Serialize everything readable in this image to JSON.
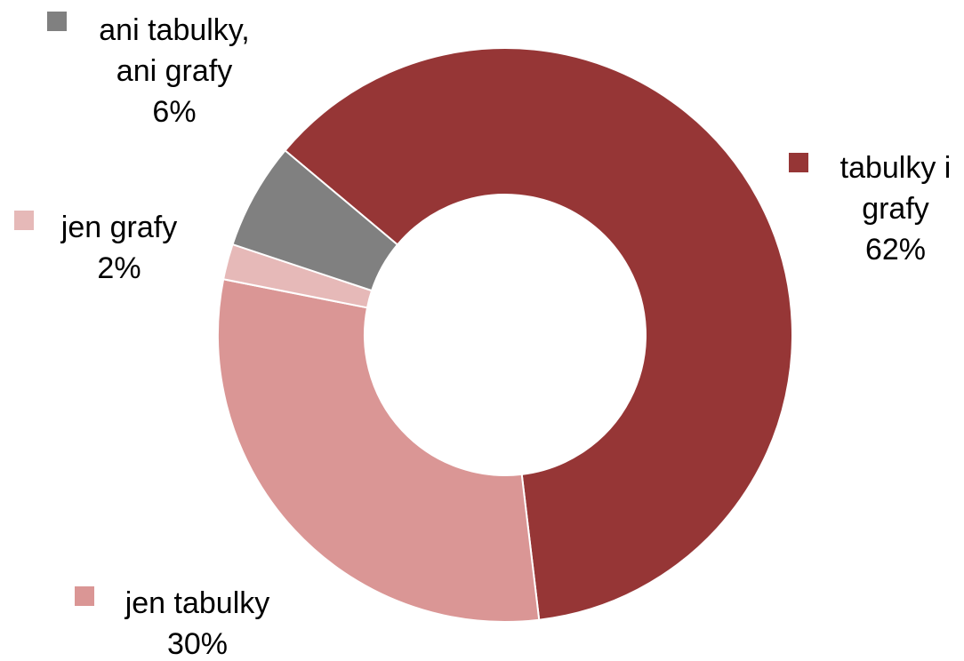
{
  "chart_data": {
    "type": "pie",
    "variant": "donut",
    "title": "",
    "slices": [
      {
        "name": "tabulky i grafy",
        "label_lines": [
          "tabulky i",
          "grafy"
        ],
        "value": 62,
        "value_label": "62%",
        "color": "#963636"
      },
      {
        "name": "jen tabulky",
        "label_lines": [
          "jen tabulky"
        ],
        "value": 30,
        "value_label": "30%",
        "color": "#DA9695"
      },
      {
        "name": "jen grafy",
        "label_lines": [
          "jen grafy"
        ],
        "value": 2,
        "value_label": "2%",
        "color": "#E6B9B8"
      },
      {
        "name": "ani tabulky, ani grafy",
        "label_lines": [
          "ani tabulky,",
          "ani grafy"
        ],
        "value": 6,
        "value_label": "6%",
        "color": "#808080"
      }
    ],
    "legend": "labels-with-color-keys"
  }
}
